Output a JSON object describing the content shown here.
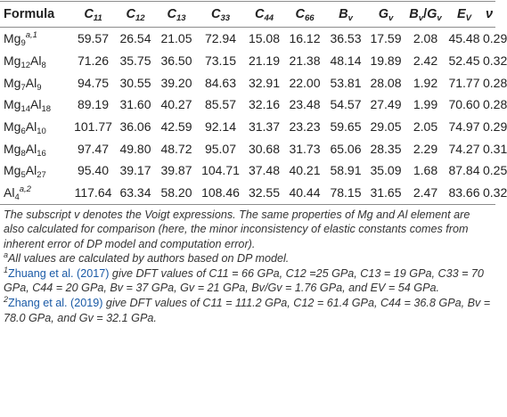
{
  "table": {
    "header": {
      "formula": "Formula",
      "c11": {
        "base": "C",
        "sub": "11"
      },
      "c12": {
        "base": "C",
        "sub": "12"
      },
      "c13": {
        "base": "C",
        "sub": "13"
      },
      "c33": {
        "base": "C",
        "sub": "33"
      },
      "c44": {
        "base": "C",
        "sub": "44"
      },
      "c66": {
        "base": "C",
        "sub": "66"
      },
      "bv": {
        "base": "B",
        "sub": "v"
      },
      "gv": {
        "base": "G",
        "sub": "v"
      },
      "bvgv": {
        "b": "B",
        "bsub": "v",
        "sep": "/",
        "g": "G",
        "gsub": "v"
      },
      "ev": {
        "base": "E",
        "sub": "V"
      },
      "nu": "ν"
    },
    "rows": [
      {
        "formula": [
          {
            "t": "Mg"
          },
          {
            "sub": "9"
          },
          {
            "sup": "a,1"
          }
        ],
        "values": [
          "59.57",
          "26.54",
          "21.05",
          "72.94",
          "15.08",
          "16.12",
          "36.53",
          "17.59",
          "2.08",
          "45.48",
          "0.29"
        ]
      },
      {
        "formula": [
          {
            "t": "Mg"
          },
          {
            "sub": "12"
          },
          {
            "t": "Al"
          },
          {
            "sub": "8"
          }
        ],
        "values": [
          "71.26",
          "35.75",
          "36.50",
          "73.15",
          "21.19",
          "21.38",
          "48.14",
          "19.89",
          "2.42",
          "52.45",
          "0.32"
        ]
      },
      {
        "formula": [
          {
            "t": "Mg"
          },
          {
            "sub": "7"
          },
          {
            "t": "Al"
          },
          {
            "sub": "9"
          }
        ],
        "values": [
          "94.75",
          "30.55",
          "39.20",
          "84.63",
          "32.91",
          "22.00",
          "53.81",
          "28.08",
          "1.92",
          "71.77",
          "0.28"
        ]
      },
      {
        "formula": [
          {
            "t": "Mg"
          },
          {
            "sub": "14"
          },
          {
            "t": "Al"
          },
          {
            "sub": "18"
          }
        ],
        "values": [
          "89.19",
          "31.60",
          "40.27",
          "85.57",
          "32.16",
          "23.48",
          "54.57",
          "27.49",
          "1.99",
          "70.60",
          "0.28"
        ]
      },
      {
        "formula": [
          {
            "t": "Mg"
          },
          {
            "sub": "6"
          },
          {
            "t": "Al"
          },
          {
            "sub": "10"
          }
        ],
        "values": [
          "101.77",
          "36.06",
          "42.59",
          "92.14",
          "31.37",
          "23.23",
          "59.65",
          "29.05",
          "2.05",
          "74.97",
          "0.29"
        ]
      },
      {
        "formula": [
          {
            "t": "Mg"
          },
          {
            "sub": "8"
          },
          {
            "t": "Al"
          },
          {
            "sub": "16"
          }
        ],
        "values": [
          "97.47",
          "49.80",
          "48.72",
          "95.07",
          "30.68",
          "31.73",
          "65.06",
          "28.35",
          "2.29",
          "74.27",
          "0.31"
        ]
      },
      {
        "formula": [
          {
            "t": "Mg"
          },
          {
            "sub": "5"
          },
          {
            "t": "Al"
          },
          {
            "sub": "27"
          }
        ],
        "values": [
          "95.40",
          "39.17",
          "39.87",
          "104.71",
          "37.48",
          "40.21",
          "58.91",
          "35.09",
          "1.68",
          "87.84",
          "0.25"
        ]
      },
      {
        "formula": [
          {
            "t": "Al"
          },
          {
            "sub": "4"
          },
          {
            "sup": "a,2"
          }
        ],
        "values": [
          "117.64",
          "63.34",
          "58.20",
          "108.46",
          "32.55",
          "40.44",
          "78.15",
          "31.65",
          "2.47",
          "83.66",
          "0.32"
        ]
      }
    ]
  },
  "notes": {
    "intro": "The subscript v denotes the Voigt expressions. The same properties of Mg and Al element are also calculated for comparison (here, the minor inconsistency of elastic constants comes from inherent error of DP model and computation error).",
    "a": {
      "mark": "a",
      "text": "All values are calculated by authors based on DP model."
    },
    "n1": {
      "mark": "1",
      "cite": "Zhuang et al. (2017)",
      "text": " give DFT values of C11 = 66 GPa, C12 =25 GPa, C13 = 19 GPa, C33 = 70 GPa, C44 = 20 GPa, Bv = 37 GPa, Gv = 21 GPa, Bv/Gv = 1.76 GPa, and EV = 54 GPa."
    },
    "n2": {
      "mark": "2",
      "cite": "Zhang et al. (2019)",
      "text": " give DFT values of C11 = 111.2 GPa, C12 = 61.4 GPa, C44 = 36.8 GPa, Bv = 78.0 GPa, and Gv = 32.1 GPa."
    }
  }
}
